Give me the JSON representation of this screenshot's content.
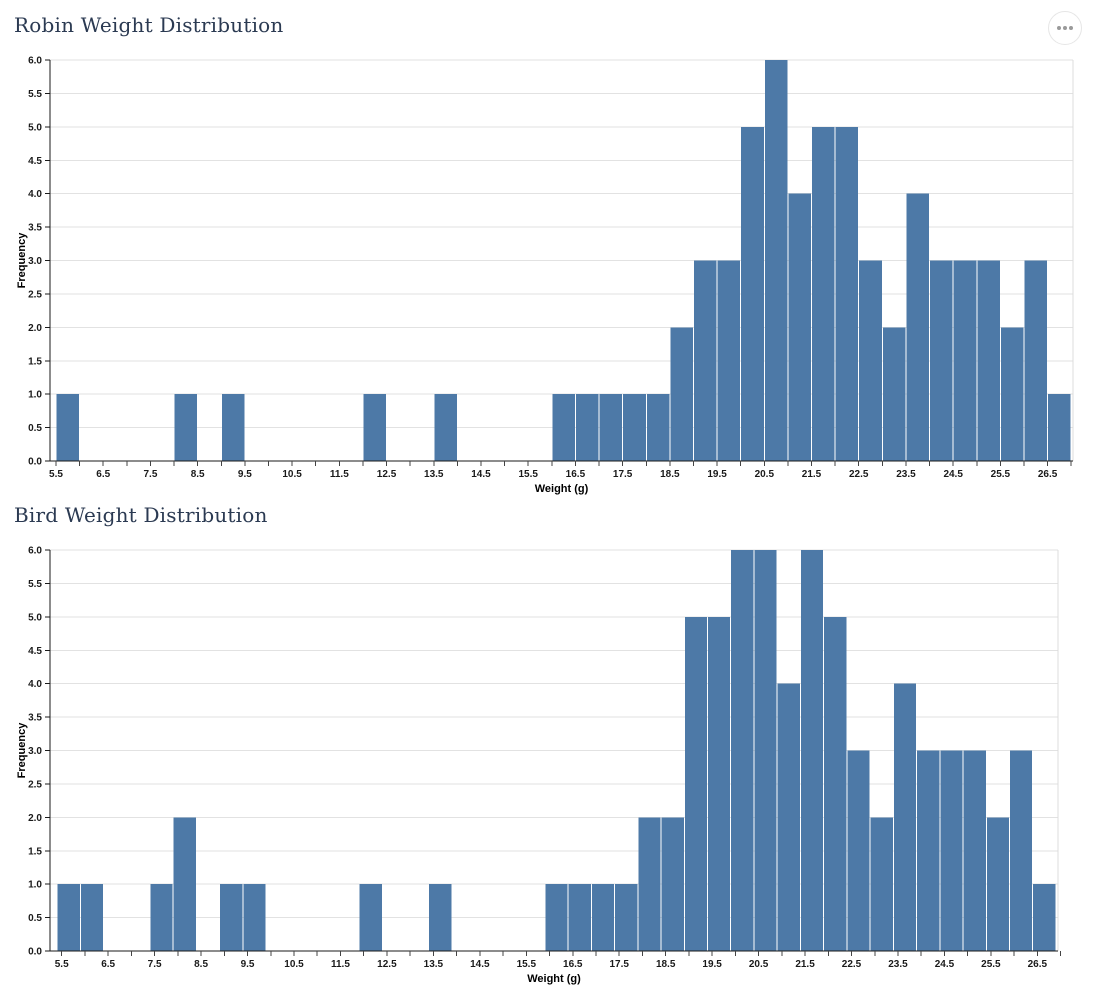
{
  "header": {
    "menu_button_icon": "ellipsis-icon"
  },
  "chart_data": [
    {
      "type": "bar",
      "chart_kind": "histogram",
      "title": "Robin Weight Distribution",
      "xlabel": "Weight (g)",
      "ylabel": "Frequency",
      "ylim": [
        0,
        6
      ],
      "y_tick_step": 0.5,
      "y_tick_labels": [
        "0.0",
        "0.5",
        "1.0",
        "1.5",
        "2.0",
        "2.5",
        "3.0",
        "3.5",
        "4.0",
        "4.5",
        "5.0",
        "5.5",
        "6.0"
      ],
      "x_axis_range": [
        5.5,
        27.0
      ],
      "x_tick_step": 0.5,
      "x_major_tick_labels": [
        "5.5",
        "6.5",
        "7.5",
        "8.5",
        "9.5",
        "10.5",
        "11.5",
        "12.5",
        "13.5",
        "14.5",
        "15.5",
        "16.5",
        "17.5",
        "18.5",
        "19.5",
        "20.5",
        "21.5",
        "22.5",
        "23.5",
        "24.5",
        "25.5",
        "26.5"
      ],
      "bin_width": 0.5,
      "bar_color": "#4d79a7",
      "gridline_color": "#e2e2e2",
      "grid": "horizontal",
      "legend": "none",
      "bins": [
        {
          "x0": 5.5,
          "count": 1
        },
        {
          "x0": 8.0,
          "count": 1
        },
        {
          "x0": 9.0,
          "count": 1
        },
        {
          "x0": 12.0,
          "count": 1
        },
        {
          "x0": 13.5,
          "count": 1
        },
        {
          "x0": 16.0,
          "count": 1
        },
        {
          "x0": 16.5,
          "count": 1
        },
        {
          "x0": 17.0,
          "count": 1
        },
        {
          "x0": 17.5,
          "count": 1
        },
        {
          "x0": 18.0,
          "count": 1
        },
        {
          "x0": 18.5,
          "count": 2
        },
        {
          "x0": 19.0,
          "count": 3
        },
        {
          "x0": 19.5,
          "count": 3
        },
        {
          "x0": 20.0,
          "count": 5
        },
        {
          "x0": 20.5,
          "count": 6
        },
        {
          "x0": 21.0,
          "count": 4
        },
        {
          "x0": 21.5,
          "count": 5
        },
        {
          "x0": 22.0,
          "count": 5
        },
        {
          "x0": 22.5,
          "count": 3
        },
        {
          "x0": 23.0,
          "count": 2
        },
        {
          "x0": 23.5,
          "count": 4
        },
        {
          "x0": 24.0,
          "count": 3
        },
        {
          "x0": 24.5,
          "count": 3
        },
        {
          "x0": 25.0,
          "count": 3
        },
        {
          "x0": 25.5,
          "count": 2
        },
        {
          "x0": 26.0,
          "count": 3
        },
        {
          "x0": 26.5,
          "count": 1
        }
      ]
    },
    {
      "type": "bar",
      "chart_kind": "histogram",
      "title": "Bird Weight Distribution",
      "xlabel": "Weight (g)",
      "ylabel": "Frequency",
      "ylim": [
        0,
        6
      ],
      "y_tick_step": 0.5,
      "y_tick_labels": [
        "0.0",
        "0.5",
        "1.0",
        "1.5",
        "2.0",
        "2.5",
        "3.0",
        "3.5",
        "4.0",
        "4.5",
        "5.0",
        "5.5",
        "6.0"
      ],
      "x_axis_range": [
        5.4,
        26.9
      ],
      "x_tick_step": 0.5,
      "x_major_tick_labels": [
        "5.5",
        "6.5",
        "7.5",
        "8.5",
        "9.5",
        "10.5",
        "11.5",
        "12.5",
        "13.5",
        "14.5",
        "15.5",
        "16.5",
        "17.5",
        "18.5",
        "19.5",
        "20.5",
        "21.5",
        "22.5",
        "23.5",
        "24.5",
        "25.5",
        "26.5"
      ],
      "bin_width": 0.5,
      "bar_color": "#4d79a7",
      "gridline_color": "#e2e2e2",
      "grid": "horizontal",
      "legend": "none",
      "bins": [
        {
          "x0": 5.4,
          "count": 1
        },
        {
          "x0": 5.9,
          "count": 1
        },
        {
          "x0": 7.4,
          "count": 1
        },
        {
          "x0": 7.9,
          "count": 2
        },
        {
          "x0": 8.9,
          "count": 1
        },
        {
          "x0": 9.4,
          "count": 1
        },
        {
          "x0": 11.9,
          "count": 1
        },
        {
          "x0": 13.4,
          "count": 1
        },
        {
          "x0": 15.9,
          "count": 1
        },
        {
          "x0": 16.4,
          "count": 1
        },
        {
          "x0": 16.9,
          "count": 1
        },
        {
          "x0": 17.4,
          "count": 1
        },
        {
          "x0": 17.9,
          "count": 2
        },
        {
          "x0": 18.4,
          "count": 2
        },
        {
          "x0": 18.9,
          "count": 5
        },
        {
          "x0": 19.4,
          "count": 5
        },
        {
          "x0": 19.9,
          "count": 6
        },
        {
          "x0": 20.4,
          "count": 6
        },
        {
          "x0": 20.9,
          "count": 4
        },
        {
          "x0": 21.4,
          "count": 6
        },
        {
          "x0": 21.9,
          "count": 5
        },
        {
          "x0": 22.4,
          "count": 3
        },
        {
          "x0": 22.9,
          "count": 2
        },
        {
          "x0": 23.4,
          "count": 4
        },
        {
          "x0": 23.9,
          "count": 3
        },
        {
          "x0": 24.4,
          "count": 3
        },
        {
          "x0": 24.9,
          "count": 3
        },
        {
          "x0": 25.4,
          "count": 2
        },
        {
          "x0": 25.9,
          "count": 3
        },
        {
          "x0": 26.4,
          "count": 1
        }
      ]
    }
  ]
}
